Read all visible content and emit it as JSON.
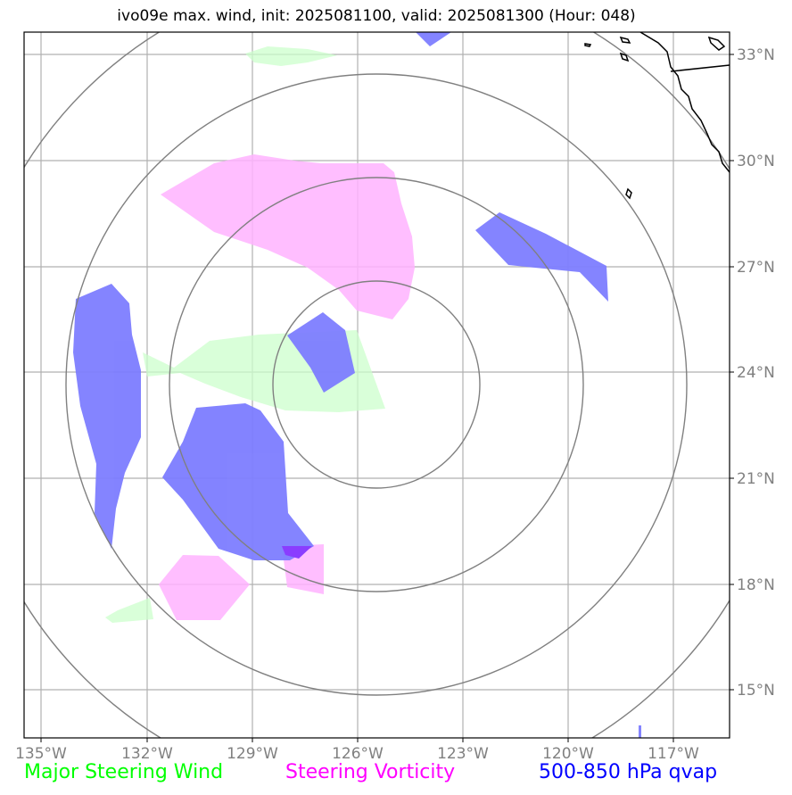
{
  "title": "ivo09e max. wind, init: 2025081100, valid: 2025081300 (Hour: 048)",
  "axes": {
    "lon_ticks": [
      "135°W",
      "132°W",
      "129°W",
      "126°W",
      "123°W",
      "120°W",
      "117°W"
    ],
    "lat_ticks": [
      "33°N",
      "30°N",
      "27°N",
      "24°N",
      "21°N",
      "18°N",
      "15°N"
    ]
  },
  "legend": {
    "wind": {
      "label": "Major Steering Wind",
      "color": "#00ff00"
    },
    "vort": {
      "label": "Steering Vorticity",
      "color": "#ff00ff"
    },
    "qvap": {
      "label": "500-850 hPa qvap",
      "color": "#0000ff"
    }
  },
  "colors": {
    "wind_fill": "#ccffcc",
    "vort_fill": "#ffb3ff",
    "qvap_fill": "#7d7dff",
    "range_rings": "#808080",
    "gridlines": "#b0b0b0"
  }
}
